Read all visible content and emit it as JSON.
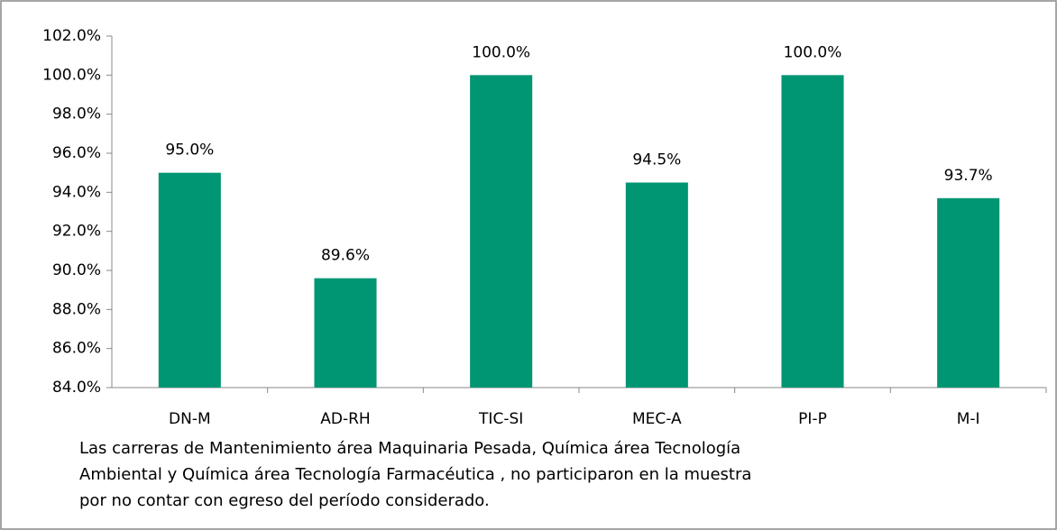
{
  "chart_data": {
    "type": "bar",
    "categories": [
      "DN-M",
      "AD-RH",
      "TIC-SI",
      "MEC-A",
      "PI-P",
      "M-I"
    ],
    "values": [
      95.0,
      89.6,
      100.0,
      94.5,
      100.0,
      93.7
    ],
    "value_labels": [
      "95.0%",
      "89.6%",
      "100.0%",
      "94.5%",
      "100.0%",
      "93.7%"
    ],
    "color": "#009673",
    "ylim": [
      84,
      102
    ],
    "yticks": [
      {
        "value": 84,
        "label": "84.0%"
      },
      {
        "value": 86,
        "label": "86.0%"
      },
      {
        "value": 88,
        "label": "88.0%"
      },
      {
        "value": 90,
        "label": "90.0%"
      },
      {
        "value": 92,
        "label": "92.0%"
      },
      {
        "value": 94,
        "label": "94.0%"
      },
      {
        "value": 96,
        "label": "96.0%"
      },
      {
        "value": 98,
        "label": "98.0%"
      },
      {
        "value": 100,
        "label": "100.0%"
      },
      {
        "value": 102,
        "label": "102.0%"
      }
    ],
    "grid": false,
    "annotation": [
      "Las carreras de Mantenimiento área Maquinaria Pesada, Química área Tecnología",
      "Ambiental y Química área Tecnología Farmacéutica , no participaron en la muestra",
      "por no contar con egreso del período considerado."
    ]
  }
}
